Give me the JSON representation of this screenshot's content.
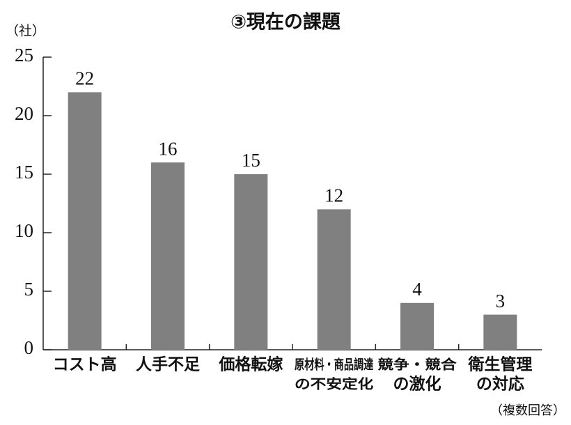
{
  "chart_data": {
    "type": "bar",
    "title": "③現在の課題",
    "y_label": "（社）",
    "note": "（複数回答）",
    "categories": [
      [
        "コスト高"
      ],
      [
        "人手不足"
      ],
      [
        "価格転嫁"
      ],
      [
        "原材料・商品調達",
        "の不安定化"
      ],
      [
        "競争・競合",
        "の激化"
      ],
      [
        "衛生管理",
        "の対応"
      ]
    ],
    "values": [
      22,
      16,
      15,
      12,
      4,
      3
    ],
    "color": "#808080",
    "ylim": [
      0,
      25
    ],
    "yticks": [
      0,
      5,
      10,
      15,
      20,
      25
    ]
  }
}
